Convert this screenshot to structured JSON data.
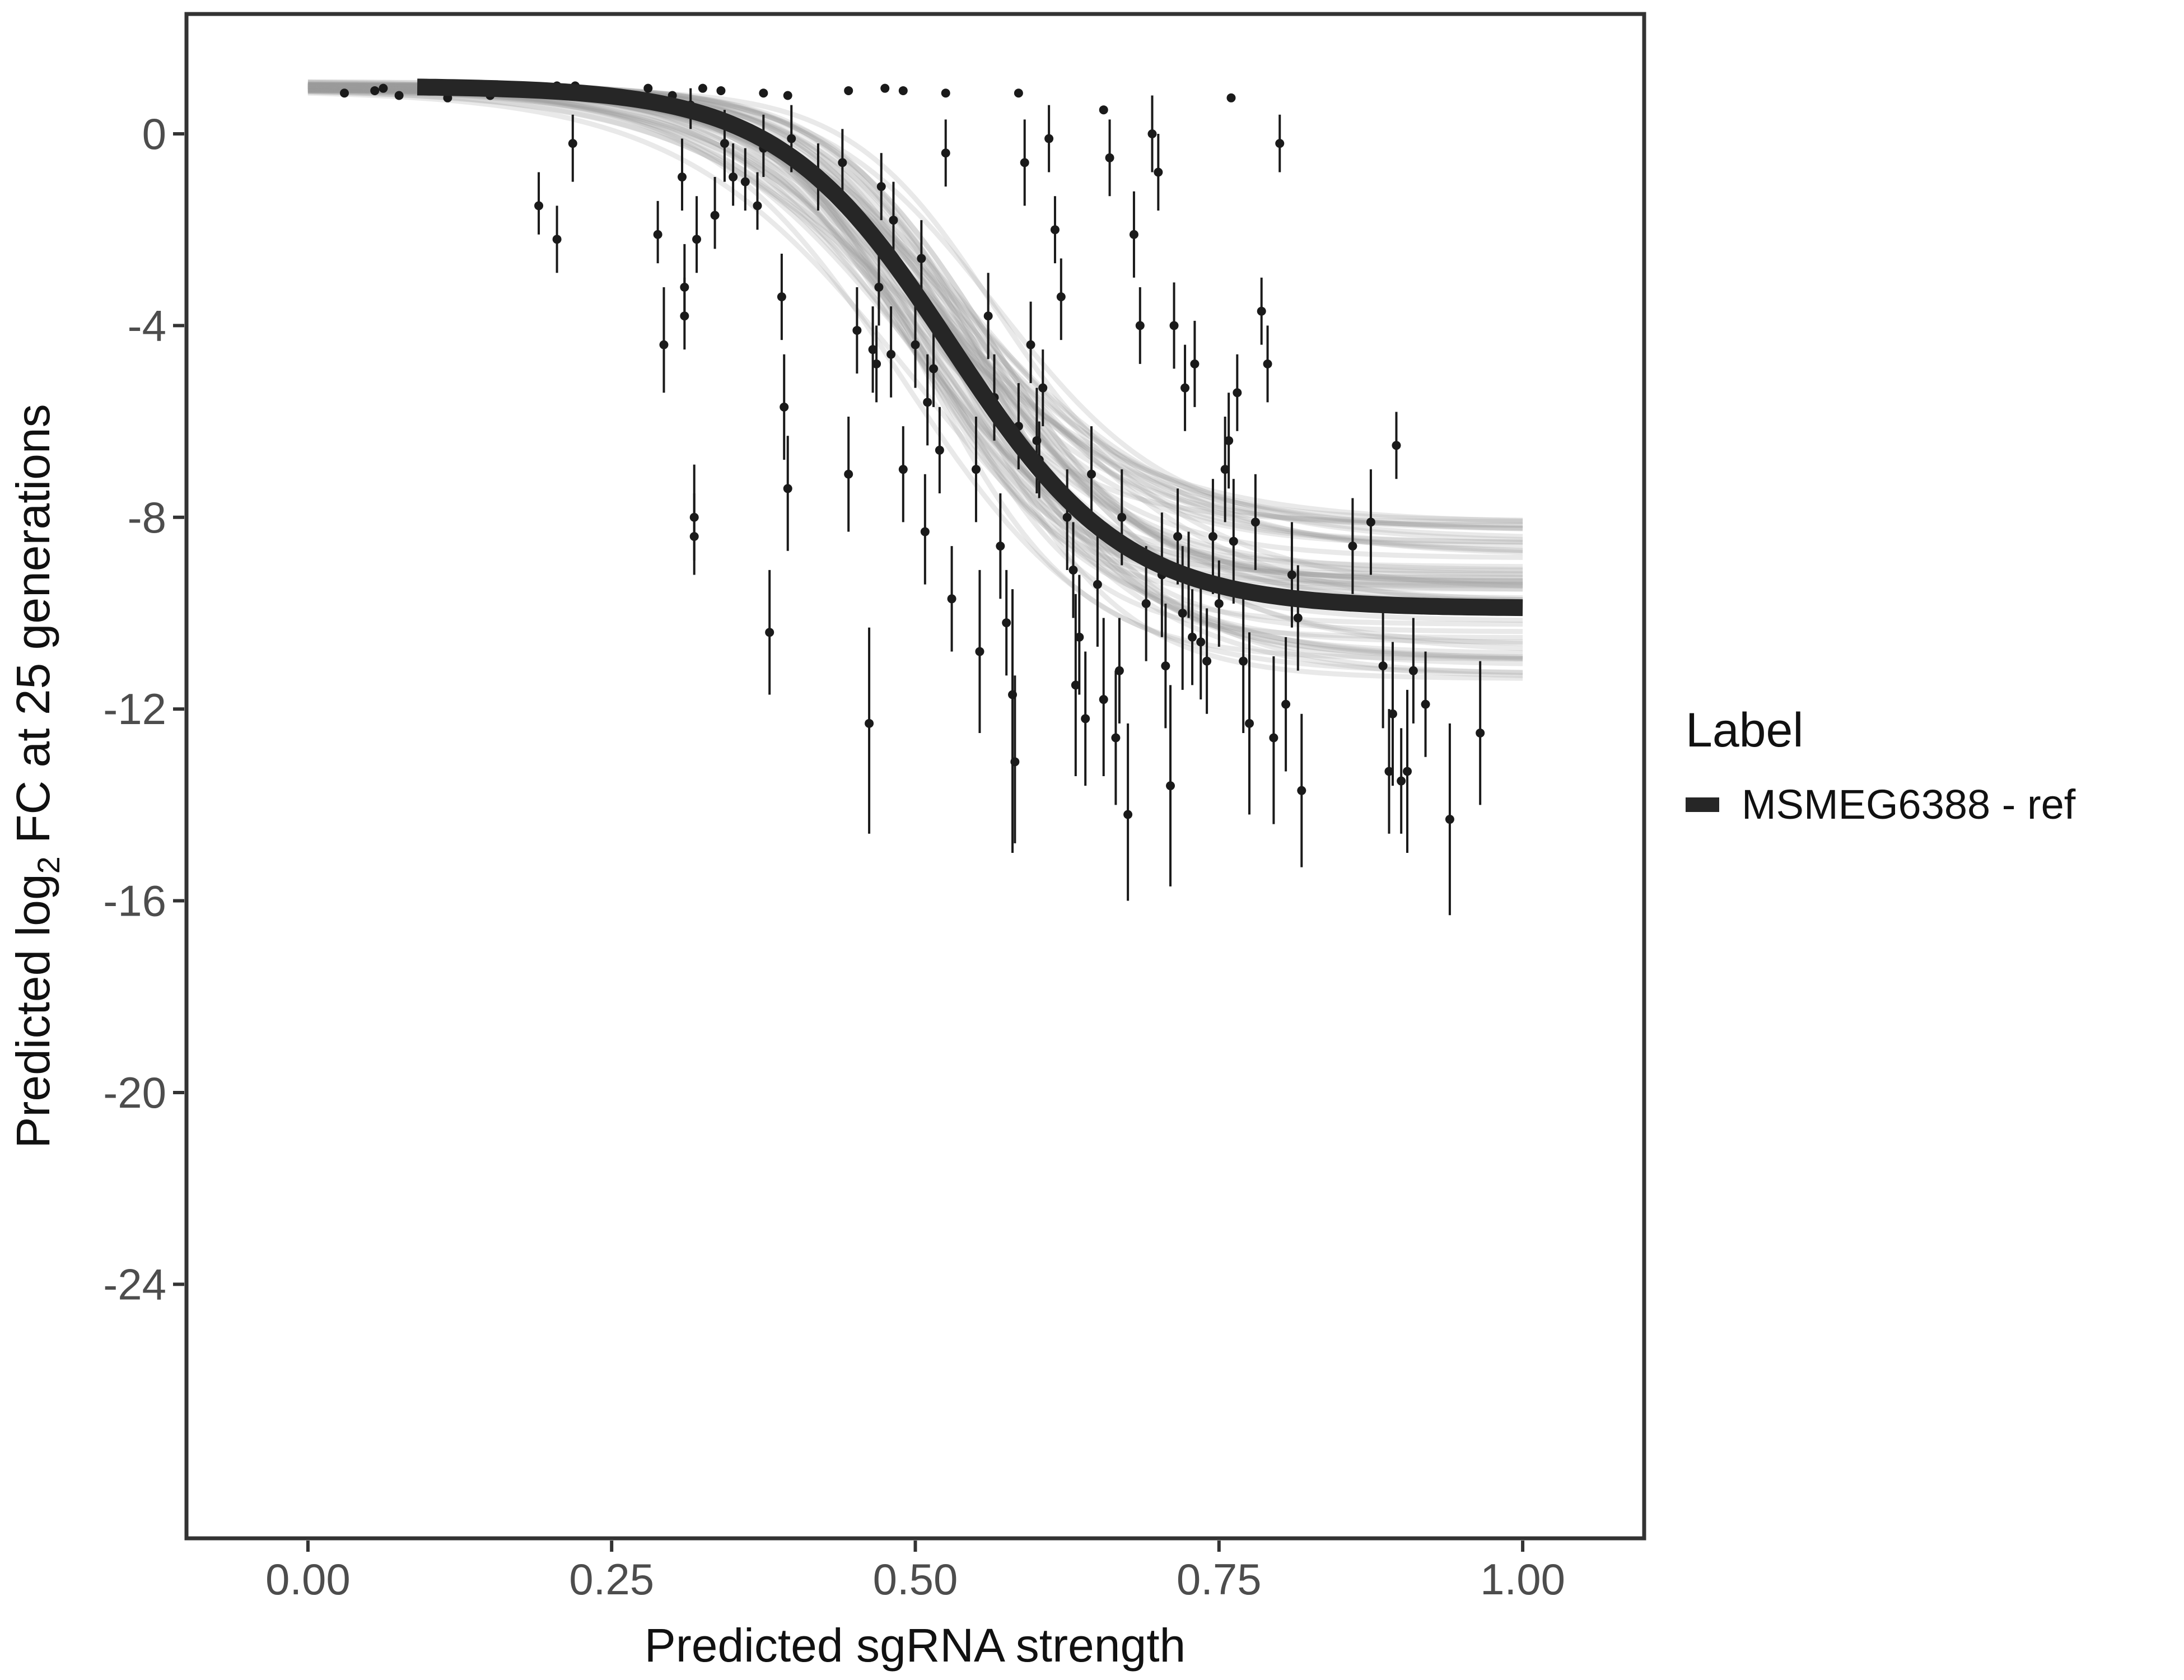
{
  "chart_data": {
    "type": "scatter",
    "title": "",
    "xlabel": "Predicted sgRNA strength",
    "ylabel_parts": {
      "pre": "Predicted  log",
      "sub": "2",
      "post": " FC at 25 generations"
    },
    "xlim": [
      -0.1,
      1.1
    ],
    "ylim": [
      -29.3,
      2.5
    ],
    "x_ticks": [
      0.0,
      0.25,
      0.5,
      0.75,
      1.0
    ],
    "x_tick_labels": [
      "0.00",
      "0.25",
      "0.50",
      "0.75",
      "1.00"
    ],
    "y_ticks": [
      0,
      -4,
      -8,
      -12,
      -16,
      -20,
      -24
    ],
    "y_tick_labels": [
      "0",
      "-4",
      "-8",
      "-12",
      "-16",
      "-20",
      "-24"
    ],
    "grid": false,
    "legend": {
      "title": "Label",
      "entries": [
        "MSMEG6388 - ref"
      ],
      "position": "right"
    },
    "fit": {
      "name": "MSMEG6388 - ref",
      "model": "logistic",
      "top": 1.0,
      "bottom": -9.9,
      "midpoint": 0.53,
      "slope": 14,
      "x_range": [
        0.09,
        1.0
      ],
      "color": "#262626"
    },
    "posterior_band": {
      "n_draws": 60,
      "color": "#9a9a9a",
      "top_range": [
        0.9,
        1.1
      ],
      "bottom_range": [
        -8.0,
        -11.4
      ],
      "midpoint_range": [
        0.49,
        0.57
      ],
      "slope_range": [
        10,
        17
      ]
    },
    "points": [
      {
        "x": 0.03,
        "y": 0.85,
        "lo": 0.85,
        "hi": 0.85
      },
      {
        "x": 0.055,
        "y": 0.9,
        "lo": 0.9,
        "hi": 0.9
      },
      {
        "x": 0.062,
        "y": 0.95,
        "lo": 0.95,
        "hi": 0.95
      },
      {
        "x": 0.075,
        "y": 0.8,
        "lo": 0.8,
        "hi": 0.8
      },
      {
        "x": 0.115,
        "y": 0.75,
        "lo": 0.75,
        "hi": 0.75
      },
      {
        "x": 0.15,
        "y": 0.8,
        "lo": 0.8,
        "hi": 0.8
      },
      {
        "x": 0.205,
        "y": 1.0,
        "lo": 1.0,
        "hi": 1.0
      },
      {
        "x": 0.22,
        "y": 1.0,
        "lo": 1.0,
        "hi": 1.0
      },
      {
        "x": 0.27,
        "y": 0.7,
        "lo": 0.7,
        "hi": 0.7
      },
      {
        "x": 0.28,
        "y": 0.95,
        "lo": 0.95,
        "hi": 0.95
      },
      {
        "x": 0.3,
        "y": 0.8,
        "lo": 0.8,
        "hi": 0.8
      },
      {
        "x": 0.325,
        "y": 0.95,
        "lo": 0.95,
        "hi": 0.95
      },
      {
        "x": 0.34,
        "y": 0.9,
        "lo": 0.9,
        "hi": 0.9
      },
      {
        "x": 0.375,
        "y": 0.85,
        "lo": 0.85,
        "hi": 0.85
      },
      {
        "x": 0.395,
        "y": 0.8,
        "lo": 0.8,
        "hi": 0.8
      },
      {
        "x": 0.445,
        "y": 0.9,
        "lo": 0.9,
        "hi": 0.9
      },
      {
        "x": 0.475,
        "y": 0.95,
        "lo": 0.95,
        "hi": 0.95
      },
      {
        "x": 0.49,
        "y": 0.9,
        "lo": 0.9,
        "hi": 0.9
      },
      {
        "x": 0.525,
        "y": 0.85,
        "lo": 0.85,
        "hi": 0.85
      },
      {
        "x": 0.585,
        "y": 0.85,
        "lo": 0.85,
        "hi": 0.85
      },
      {
        "x": 0.655,
        "y": 0.5,
        "lo": 0.5,
        "hi": 0.5
      },
      {
        "x": 0.76,
        "y": 0.75,
        "lo": 0.75,
        "hi": 0.75
      },
      {
        "x": 0.19,
        "y": -1.5,
        "lo": -2.1,
        "hi": -0.8
      },
      {
        "x": 0.205,
        "y": -2.2,
        "lo": -2.9,
        "hi": -1.5
      },
      {
        "x": 0.218,
        "y": -0.2,
        "lo": -1.0,
        "hi": 0.4
      },
      {
        "x": 0.288,
        "y": -2.1,
        "lo": -2.7,
        "hi": -1.4
      },
      {
        "x": 0.293,
        "y": -4.4,
        "lo": -5.4,
        "hi": -3.2
      },
      {
        "x": 0.308,
        "y": -0.9,
        "lo": -1.6,
        "hi": -0.1
      },
      {
        "x": 0.31,
        "y": -3.2,
        "lo": -3.9,
        "hi": -2.3
      },
      {
        "x": 0.31,
        "y": -3.8,
        "lo": -4.5,
        "hi": -3.0
      },
      {
        "x": 0.318,
        "y": -8.0,
        "lo": -8.9,
        "hi": -6.9
      },
      {
        "x": 0.318,
        "y": -8.4,
        "lo": -9.2,
        "hi": -7.5
      },
      {
        "x": 0.32,
        "y": -2.2,
        "lo": -2.9,
        "hi": -1.3
      },
      {
        "x": 0.315,
        "y": 0.6,
        "lo": 0.1,
        "hi": 0.95
      },
      {
        "x": 0.335,
        "y": -1.7,
        "lo": -2.4,
        "hi": -0.9
      },
      {
        "x": 0.343,
        "y": -0.2,
        "lo": -1.0,
        "hi": 0.5
      },
      {
        "x": 0.35,
        "y": -0.9,
        "lo": -1.5,
        "hi": -0.2
      },
      {
        "x": 0.36,
        "y": -1.0,
        "lo": -1.6,
        "hi": -0.3
      },
      {
        "x": 0.37,
        "y": -1.5,
        "lo": -2.0,
        "hi": -0.8
      },
      {
        "x": 0.375,
        "y": -0.3,
        "lo": -0.9,
        "hi": 0.4
      },
      {
        "x": 0.38,
        "y": -10.4,
        "lo": -11.7,
        "hi": -9.1
      },
      {
        "x": 0.39,
        "y": -3.4,
        "lo": -4.3,
        "hi": -2.5
      },
      {
        "x": 0.392,
        "y": -5.7,
        "lo": -6.8,
        "hi": -4.6
      },
      {
        "x": 0.395,
        "y": -7.4,
        "lo": -8.7,
        "hi": -6.3
      },
      {
        "x": 0.398,
        "y": -0.1,
        "lo": -0.8,
        "hi": 0.6
      },
      {
        "x": 0.42,
        "y": -0.9,
        "lo": -1.6,
        "hi": -0.2
      },
      {
        "x": 0.44,
        "y": -0.6,
        "lo": -1.3,
        "hi": 0.1
      },
      {
        "x": 0.445,
        "y": -7.1,
        "lo": -8.3,
        "hi": -5.9
      },
      {
        "x": 0.452,
        "y": -4.1,
        "lo": -5.0,
        "hi": -3.2
      },
      {
        "x": 0.462,
        "y": -12.3,
        "lo": -14.6,
        "hi": -10.3
      },
      {
        "x": 0.465,
        "y": -4.5,
        "lo": -5.4,
        "hi": -3.6
      },
      {
        "x": 0.468,
        "y": -4.8,
        "lo": -5.6,
        "hi": -4.0
      },
      {
        "x": 0.47,
        "y": -3.2,
        "lo": -4.0,
        "hi": -2.4
      },
      {
        "x": 0.472,
        "y": -1.1,
        "lo": -1.8,
        "hi": -0.4
      },
      {
        "x": 0.48,
        "y": -4.6,
        "lo": -5.5,
        "hi": -3.6
      },
      {
        "x": 0.482,
        "y": -1.8,
        "lo": -2.6,
        "hi": -1.0
      },
      {
        "x": 0.49,
        "y": -7.0,
        "lo": -8.1,
        "hi": -6.1
      },
      {
        "x": 0.5,
        "y": -4.4,
        "lo": -5.3,
        "hi": -3.4
      },
      {
        "x": 0.505,
        "y": -2.6,
        "lo": -3.4,
        "hi": -1.8
      },
      {
        "x": 0.508,
        "y": -8.3,
        "lo": -9.4,
        "hi": -7.1
      },
      {
        "x": 0.51,
        "y": -5.6,
        "lo": -6.5,
        "hi": -4.6
      },
      {
        "x": 0.515,
        "y": -4.9,
        "lo": -5.7,
        "hi": -4.0
      },
      {
        "x": 0.52,
        "y": -6.6,
        "lo": -7.5,
        "hi": -5.7
      },
      {
        "x": 0.525,
        "y": -0.4,
        "lo": -1.1,
        "hi": 0.3
      },
      {
        "x": 0.53,
        "y": -9.7,
        "lo": -10.8,
        "hi": -8.6
      },
      {
        "x": 0.55,
        "y": -7.0,
        "lo": -8.1,
        "hi": -5.9
      },
      {
        "x": 0.553,
        "y": -10.8,
        "lo": -12.5,
        "hi": -9.1
      },
      {
        "x": 0.56,
        "y": -3.8,
        "lo": -4.7,
        "hi": -2.9
      },
      {
        "x": 0.565,
        "y": -5.5,
        "lo": -6.4,
        "hi": -4.6
      },
      {
        "x": 0.57,
        "y": -8.6,
        "lo": -9.7,
        "hi": -7.5
      },
      {
        "x": 0.575,
        "y": -10.2,
        "lo": -11.3,
        "hi": -9.1
      },
      {
        "x": 0.58,
        "y": -11.7,
        "lo": -15.0,
        "hi": -9.5
      },
      {
        "x": 0.582,
        "y": -13.1,
        "lo": -14.8,
        "hi": -11.3
      },
      {
        "x": 0.585,
        "y": -6.1,
        "lo": -7.0,
        "hi": -5.2
      },
      {
        "x": 0.59,
        "y": -0.6,
        "lo": -1.5,
        "hi": 0.3
      },
      {
        "x": 0.595,
        "y": -4.4,
        "lo": -5.2,
        "hi": -3.5
      },
      {
        "x": 0.6,
        "y": -6.4,
        "lo": -7.5,
        "hi": -5.3
      },
      {
        "x": 0.602,
        "y": -6.8,
        "lo": -7.6,
        "hi": -6.0
      },
      {
        "x": 0.605,
        "y": -5.3,
        "lo": -6.1,
        "hi": -4.5
      },
      {
        "x": 0.61,
        "y": -0.1,
        "lo": -0.8,
        "hi": 0.6
      },
      {
        "x": 0.615,
        "y": -2.0,
        "lo": -2.7,
        "hi": -1.3
      },
      {
        "x": 0.62,
        "y": -3.4,
        "lo": -4.3,
        "hi": -2.6
      },
      {
        "x": 0.625,
        "y": -8.0,
        "lo": -9.1,
        "hi": -7.0
      },
      {
        "x": 0.63,
        "y": -9.1,
        "lo": -10.1,
        "hi": -8.1
      },
      {
        "x": 0.632,
        "y": -11.5,
        "lo": -13.4,
        "hi": -9.6
      },
      {
        "x": 0.635,
        "y": -10.5,
        "lo": -11.7,
        "hi": -9.2
      },
      {
        "x": 0.64,
        "y": -12.2,
        "lo": -13.6,
        "hi": -10.8
      },
      {
        "x": 0.645,
        "y": -7.1,
        "lo": -8.1,
        "hi": -6.1
      },
      {
        "x": 0.65,
        "y": -9.4,
        "lo": -10.7,
        "hi": -8.1
      },
      {
        "x": 0.655,
        "y": -11.8,
        "lo": -13.4,
        "hi": -10.1
      },
      {
        "x": 0.66,
        "y": -0.5,
        "lo": -1.3,
        "hi": 0.3
      },
      {
        "x": 0.665,
        "y": -12.6,
        "lo": -14.0,
        "hi": -11.2
      },
      {
        "x": 0.668,
        "y": -11.2,
        "lo": -12.3,
        "hi": -10.1
      },
      {
        "x": 0.67,
        "y": -8.0,
        "lo": -9.0,
        "hi": -7.0
      },
      {
        "x": 0.675,
        "y": -14.2,
        "lo": -16.0,
        "hi": -12.3
      },
      {
        "x": 0.68,
        "y": -2.1,
        "lo": -3.0,
        "hi": -1.2
      },
      {
        "x": 0.685,
        "y": -4.0,
        "lo": -4.8,
        "hi": -3.2
      },
      {
        "x": 0.69,
        "y": -9.8,
        "lo": -11.0,
        "hi": -8.6
      },
      {
        "x": 0.695,
        "y": 0.0,
        "lo": -0.8,
        "hi": 0.8
      },
      {
        "x": 0.7,
        "y": -0.8,
        "lo": -1.6,
        "hi": 0.0
      },
      {
        "x": 0.703,
        "y": -9.2,
        "lo": -10.5,
        "hi": -7.9
      },
      {
        "x": 0.706,
        "y": -11.1,
        "lo": -12.4,
        "hi": -9.8
      },
      {
        "x": 0.71,
        "y": -13.6,
        "lo": -15.7,
        "hi": -11.5
      },
      {
        "x": 0.713,
        "y": -4.0,
        "lo": -4.9,
        "hi": -3.1
      },
      {
        "x": 0.716,
        "y": -8.4,
        "lo": -9.4,
        "hi": -7.4
      },
      {
        "x": 0.72,
        "y": -10.0,
        "lo": -11.6,
        "hi": -8.6
      },
      {
        "x": 0.722,
        "y": -5.3,
        "lo": -6.2,
        "hi": -4.4
      },
      {
        "x": 0.725,
        "y": -9.2,
        "lo": -10.1,
        "hi": -8.3
      },
      {
        "x": 0.728,
        "y": -10.5,
        "lo": -11.5,
        "hi": -9.5
      },
      {
        "x": 0.73,
        "y": -4.8,
        "lo": -5.7,
        "hi": -3.9
      },
      {
        "x": 0.735,
        "y": -10.6,
        "lo": -11.8,
        "hi": -9.4
      },
      {
        "x": 0.74,
        "y": -11.0,
        "lo": -12.1,
        "hi": -9.9
      },
      {
        "x": 0.745,
        "y": -8.4,
        "lo": -9.6,
        "hi": -7.2
      },
      {
        "x": 0.75,
        "y": -9.8,
        "lo": -10.7,
        "hi": -8.9
      },
      {
        "x": 0.755,
        "y": -7.0,
        "lo": -8.1,
        "hi": -5.9
      },
      {
        "x": 0.758,
        "y": -6.4,
        "lo": -7.4,
        "hi": -5.4
      },
      {
        "x": 0.762,
        "y": -8.5,
        "lo": -9.8,
        "hi": -7.2
      },
      {
        "x": 0.765,
        "y": -5.4,
        "lo": -6.2,
        "hi": -4.6
      },
      {
        "x": 0.77,
        "y": -11.0,
        "lo": -12.5,
        "hi": -9.5
      },
      {
        "x": 0.775,
        "y": -12.3,
        "lo": -14.2,
        "hi": -10.4
      },
      {
        "x": 0.78,
        "y": -8.1,
        "lo": -9.1,
        "hi": -7.1
      },
      {
        "x": 0.785,
        "y": -3.7,
        "lo": -4.4,
        "hi": -3.0
      },
      {
        "x": 0.79,
        "y": -4.8,
        "lo": -5.6,
        "hi": -4.0
      },
      {
        "x": 0.795,
        "y": -12.6,
        "lo": -14.4,
        "hi": -10.9
      },
      {
        "x": 0.8,
        "y": -0.2,
        "lo": -0.8,
        "hi": 0.4
      },
      {
        "x": 0.805,
        "y": -11.9,
        "lo": -13.3,
        "hi": -10.5
      },
      {
        "x": 0.81,
        "y": -9.2,
        "lo": -10.3,
        "hi": -8.1
      },
      {
        "x": 0.815,
        "y": -10.1,
        "lo": -11.2,
        "hi": -9.0
      },
      {
        "x": 0.818,
        "y": -13.7,
        "lo": -15.3,
        "hi": -12.1
      },
      {
        "x": 0.86,
        "y": -8.6,
        "lo": -9.6,
        "hi": -7.6
      },
      {
        "x": 0.875,
        "y": -8.1,
        "lo": -9.2,
        "hi": -7.0
      },
      {
        "x": 0.885,
        "y": -11.1,
        "lo": -12.4,
        "hi": -9.8
      },
      {
        "x": 0.89,
        "y": -13.3,
        "lo": -14.6,
        "hi": -12.0
      },
      {
        "x": 0.893,
        "y": -12.1,
        "lo": -13.6,
        "hi": -10.6
      },
      {
        "x": 0.896,
        "y": -6.5,
        "lo": -7.2,
        "hi": -5.8
      },
      {
        "x": 0.9,
        "y": -13.5,
        "lo": -14.6,
        "hi": -12.4
      },
      {
        "x": 0.905,
        "y": -13.3,
        "lo": -15.0,
        "hi": -11.6
      },
      {
        "x": 0.91,
        "y": -11.2,
        "lo": -12.3,
        "hi": -10.1
      },
      {
        "x": 0.92,
        "y": -11.9,
        "lo": -13.0,
        "hi": -10.8
      },
      {
        "x": 0.94,
        "y": -14.3,
        "lo": -16.3,
        "hi": -12.3
      },
      {
        "x": 0.965,
        "y": -12.5,
        "lo": -14.0,
        "hi": -11.0
      }
    ]
  }
}
